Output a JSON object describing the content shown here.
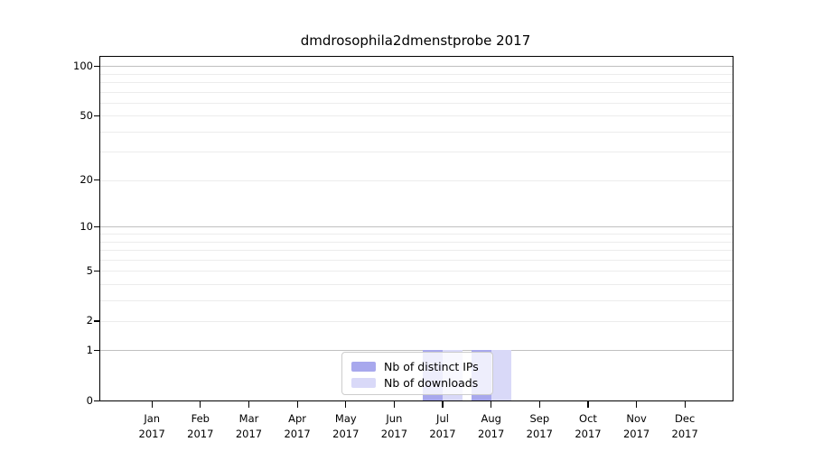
{
  "figure": {
    "title": "dmdrosophila2dmenstprobe 2017"
  },
  "legend": {
    "items": [
      {
        "label": "Nb of distinct IPs",
        "color": "#a8a8ed"
      },
      {
        "label": "Nb of downloads",
        "color": "#d9d9f8"
      }
    ]
  },
  "chart_data": {
    "type": "bar",
    "title": "dmdrosophila2dmenstprobe 2017",
    "categories": [
      "Jan 2017",
      "Feb 2017",
      "Mar 2017",
      "Apr 2017",
      "May 2017",
      "Jun 2017",
      "Jul 2017",
      "Aug 2017",
      "Sep 2017",
      "Oct 2017",
      "Nov 2017",
      "Dec 2017"
    ],
    "month_labels": [
      {
        "month": "Jan",
        "year": "2017"
      },
      {
        "month": "Feb",
        "year": "2017"
      },
      {
        "month": "Mar",
        "year": "2017"
      },
      {
        "month": "Apr",
        "year": "2017"
      },
      {
        "month": "May",
        "year": "2017"
      },
      {
        "month": "Jun",
        "year": "2017"
      },
      {
        "month": "Jul",
        "year": "2017"
      },
      {
        "month": "Aug",
        "year": "2017"
      },
      {
        "month": "Sep",
        "year": "2017"
      },
      {
        "month": "Oct",
        "year": "2017"
      },
      {
        "month": "Nov",
        "year": "2017"
      },
      {
        "month": "Dec",
        "year": "2017"
      }
    ],
    "series": [
      {
        "name": "Nb of distinct IPs",
        "color": "#a8a8ed",
        "values": [
          0,
          0,
          0,
          0,
          0,
          0,
          1,
          1,
          0,
          0,
          0,
          0
        ]
      },
      {
        "name": "Nb of downloads",
        "color": "#d9d9f8",
        "values": [
          0,
          0,
          0,
          0,
          0,
          0,
          1,
          1,
          0,
          0,
          0,
          0
        ]
      }
    ],
    "xlabel": "",
    "ylabel": "",
    "y_axis": {
      "scale": "log1p",
      "tick_values": [
        0,
        1,
        2,
        5,
        10,
        20,
        50,
        100
      ],
      "tick_labels": [
        "0",
        "1",
        "2",
        "5",
        "10",
        "20",
        "50",
        "100"
      ],
      "gridline_values": [
        1,
        2,
        3,
        4,
        5,
        6,
        7,
        8,
        9,
        10,
        20,
        30,
        40,
        50,
        60,
        70,
        80,
        90,
        100
      ],
      "major_gridline_values": [
        1,
        10,
        100
      ],
      "ylim": [
        0,
        114
      ]
    },
    "grid": true,
    "legend_position": "lower center"
  }
}
